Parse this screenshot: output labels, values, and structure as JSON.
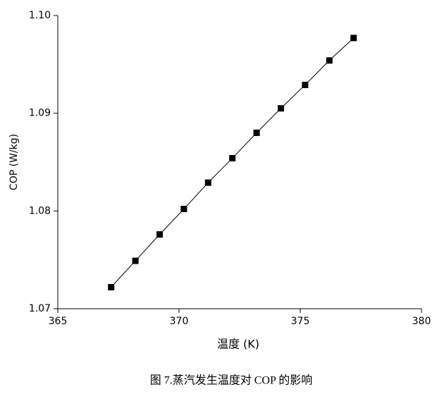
{
  "chart_data": {
    "type": "line",
    "x_label": "温度 (K)",
    "y_label": "COP (W/kg)",
    "caption": "图 7.蒸汽发生温度对 COP 的影响",
    "series": [
      {
        "color": "#000000",
        "x": [
          367.2,
          368.2,
          369.2,
          370.2,
          371.2,
          372.2,
          373.2,
          374.2,
          375.2,
          376.2,
          377.2
        ],
        "values": [
          1.0722,
          1.0749,
          1.0776,
          1.0802,
          1.0829,
          1.0854,
          1.088,
          1.0905,
          1.0929,
          1.0954,
          1.0977
        ]
      }
    ],
    "xlim": [
      365,
      380
    ],
    "xticks": [
      365,
      370,
      375,
      380
    ],
    "ylim": [
      1.07,
      1.1
    ],
    "yticks": [
      1.07,
      1.08,
      1.09,
      {
        "value": 1.1,
        "label": "1.10"
      }
    ]
  }
}
